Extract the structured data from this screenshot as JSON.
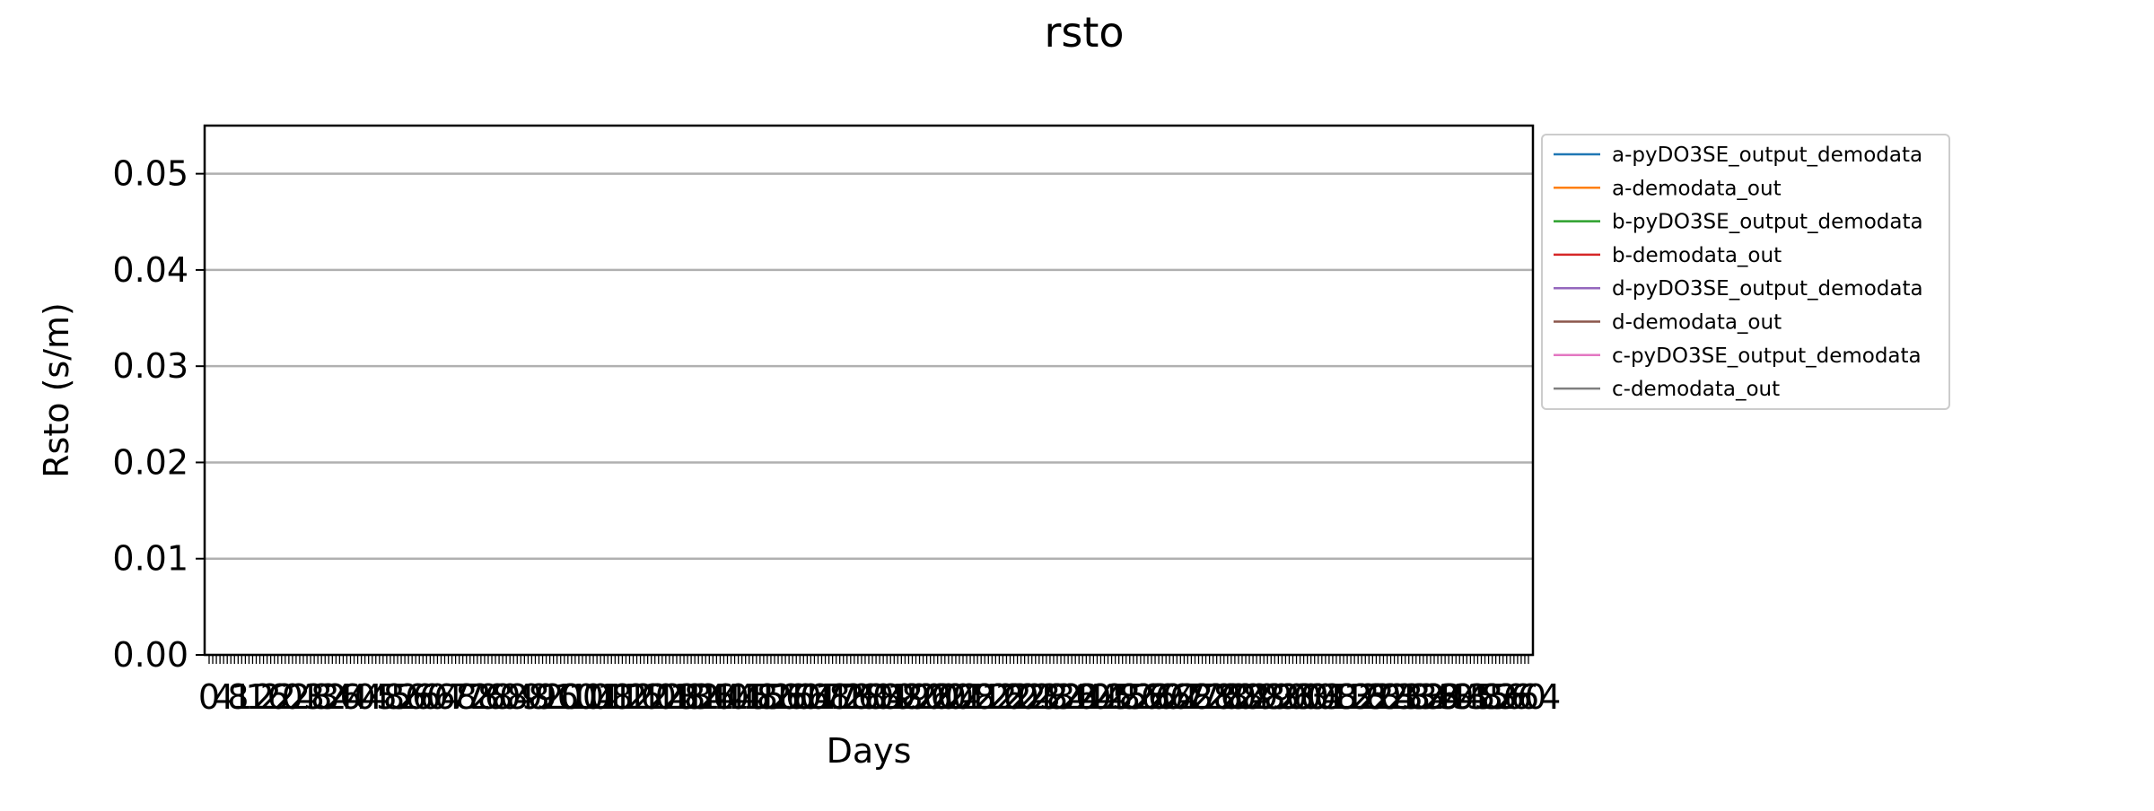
{
  "chart_data": {
    "type": "line",
    "title": "rsto",
    "xlabel": "Days",
    "ylabel": "Rsto (s/m)",
    "ylim": [
      0,
      0.055
    ],
    "y_ticks": [
      "0.00",
      "0.01",
      "0.02",
      "0.03",
      "0.04",
      "0.05"
    ],
    "y_tick_values": [
      0,
      0.01,
      0.02,
      0.03,
      0.04,
      0.05
    ],
    "x_tick_count": 365,
    "grid": "horizontal",
    "legend_position": "outside-right",
    "series": [
      {
        "name": "a-pyDO3SE_output_demodata",
        "color": "#1f77b4",
        "values": [
          0,
          0,
          0,
          0,
          0,
          0,
          0,
          0,
          0,
          0,
          0,
          0,
          0,
          0,
          0,
          0,
          0
        ]
      },
      {
        "name": "a-demodata_out",
        "color": "#ff7f0e",
        "values": [
          0,
          0,
          0,
          0,
          0,
          0,
          0,
          0,
          0,
          0,
          0,
          0,
          0,
          0,
          0,
          0,
          0
        ]
      },
      {
        "name": "b-pyDO3SE_output_demodata",
        "color": "#2ca02c",
        "values": [
          0,
          0,
          0,
          0,
          0,
          0,
          0,
          0,
          0,
          0,
          0,
          0,
          0,
          0,
          0,
          0,
          0
        ]
      },
      {
        "name": "b-demodata_out",
        "color": "#d62728",
        "values": [
          0,
          0,
          0,
          0,
          0,
          0,
          0,
          0,
          0,
          0,
          0,
          0,
          0,
          0,
          0,
          0,
          0
        ]
      },
      {
        "name": "d-pyDO3SE_output_demodata",
        "color": "#9467bd",
        "values": [
          0,
          0,
          0,
          0,
          0,
          0,
          0,
          0,
          0,
          0,
          0,
          0,
          0,
          0,
          0,
          0,
          0
        ]
      },
      {
        "name": "d-demodata_out",
        "color": "#8c564b",
        "values": [
          0,
          0,
          0,
          0,
          0,
          0,
          0,
          0,
          0,
          0,
          0,
          0,
          0,
          0,
          0,
          0,
          0
        ]
      },
      {
        "name": "c-pyDO3SE_output_demodata",
        "color": "#e377c2",
        "values": [
          0,
          0,
          0,
          0,
          0,
          0,
          0,
          0,
          0,
          0,
          0,
          0,
          0,
          0,
          0,
          0,
          0
        ]
      },
      {
        "name": "c-demodata_out",
        "color": "#7f7f7f",
        "values": [
          0,
          0,
          0,
          0,
          0,
          0,
          0,
          0,
          0,
          0,
          0,
          0,
          0,
          0,
          0,
          0,
          0
        ]
      }
    ]
  }
}
